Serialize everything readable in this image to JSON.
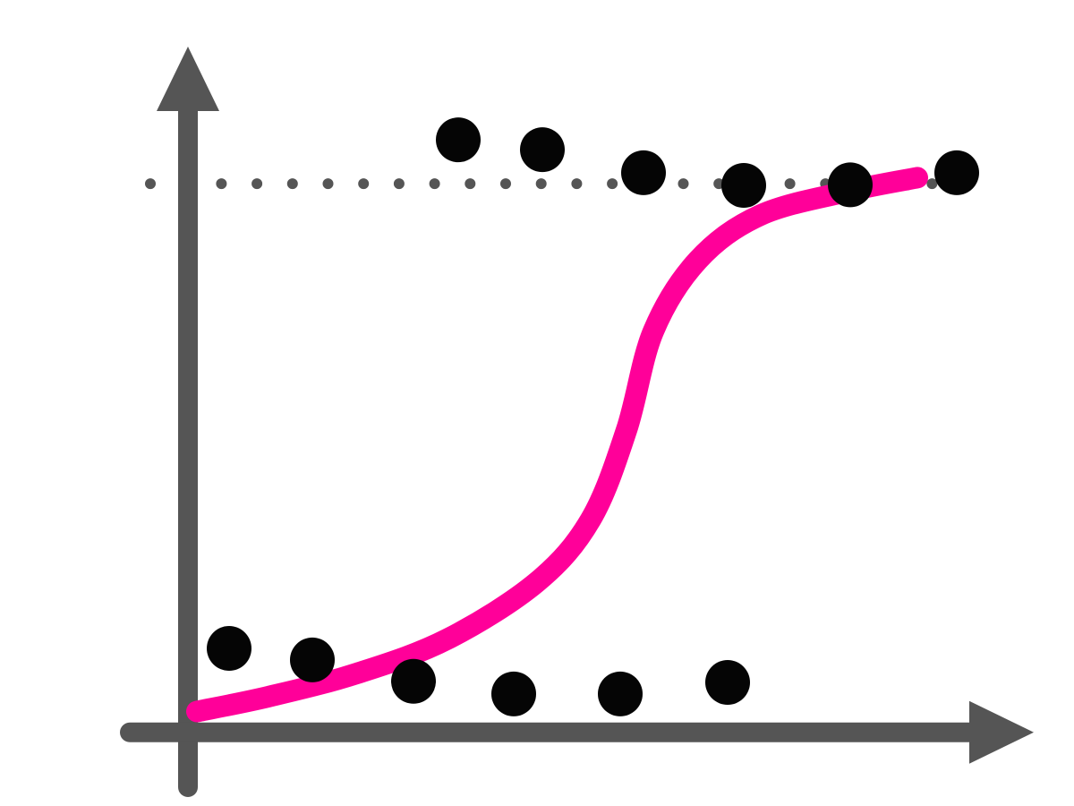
{
  "chart_data": {
    "type": "logistic",
    "xlim": [
      -0.75,
      9.45
    ],
    "ylim": [
      -0.1,
      1.25
    ],
    "reference_line": 1,
    "axis_color": "#555555",
    "points": {
      "color": "#050505",
      "x": [
        0.46,
        1.39,
        2.52,
        3.64,
        4.83,
        6.03,
        3.02,
        3.96,
        5.09,
        6.21,
        7.4,
        8.59
      ],
      "values": [
        0.153,
        0.132,
        0.093,
        0.07,
        0.07,
        0.091,
        1.08,
        1.062,
        1.02,
        0.997,
        0.998,
        1.02
      ]
    },
    "curve": {
      "color": "#ff0099",
      "x": [
        0.1,
        0.9,
        1.9,
        2.9,
        3.9,
        4.5,
        4.9,
        5.2,
        5.7,
        6.4,
        7.4,
        8.15
      ],
      "values": [
        0.038,
        0.065,
        0.108,
        0.17,
        0.274,
        0.388,
        0.551,
        0.731,
        0.861,
        0.943,
        0.987,
        1.011
      ]
    }
  }
}
